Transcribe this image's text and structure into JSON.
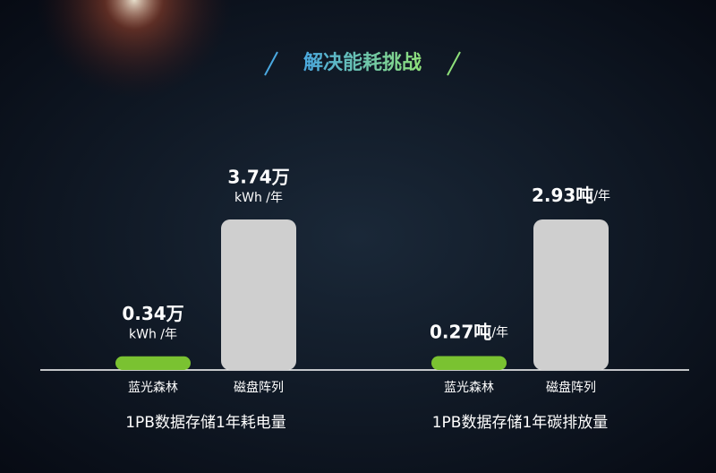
{
  "title": "解决能耗挑战",
  "chart_data": [
    {
      "type": "bar",
      "title": "1PB数据存储1年耗电量",
      "categories": [
        "蓝光森林",
        "磁盘阵列"
      ],
      "values": [
        0.34,
        3.74
      ],
      "value_labels": [
        "0.34万",
        "3.74万"
      ],
      "unit_label": "kWh /年",
      "colors": [
        "#7ac231",
        "#cfcfcf"
      ]
    },
    {
      "type": "bar",
      "title": "1PB数据存储1年碳排放量",
      "categories": [
        "蓝光森林",
        "磁盘阵列"
      ],
      "values": [
        0.27,
        2.93
      ],
      "value_labels": [
        "0.27吨",
        "2.93吨"
      ],
      "unit_label": "/年",
      "colors": [
        "#7ac231",
        "#cfcfcf"
      ]
    }
  ]
}
